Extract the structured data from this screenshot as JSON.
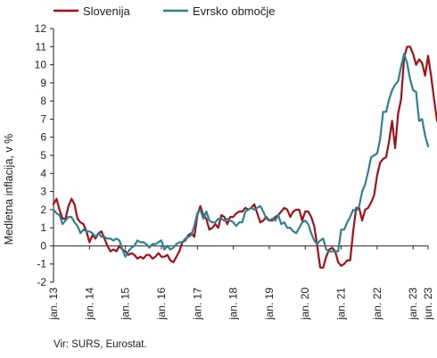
{
  "chart_data": {
    "type": "line",
    "ylabel": "Medletna inflacija, v %",
    "ylim": [
      -2,
      12
    ],
    "yticks": [
      -2,
      -1,
      0,
      1,
      2,
      3,
      4,
      5,
      6,
      7,
      8,
      9,
      10,
      11,
      12
    ],
    "xticks": [
      "jan. 13",
      "jan. 14",
      "jan. 15",
      "jan. 16",
      "jan. 17",
      "jan. 18",
      "jan. 19",
      "jan. 20",
      "jan. 21",
      "jan. 22",
      "jan. 23",
      "jun. 23"
    ],
    "x_start": "2013-01",
    "x_end": "2023-06",
    "legend": "top-left",
    "grid": false,
    "series": [
      {
        "name": "Slovenija",
        "color": "#a50f15",
        "values": [
          2.3,
          2.6,
          2.0,
          1.5,
          1.5,
          2.2,
          2.6,
          2.3,
          1.5,
          1.3,
          1.2,
          0.8,
          0.2,
          0.6,
          0.4,
          0.7,
          0.8,
          0.4,
          0.0,
          -0.3,
          -0.2,
          -0.3,
          0.0,
          -0.2,
          -0.3,
          -0.5,
          -0.4,
          -0.5,
          -0.7,
          -0.6,
          -0.7,
          -0.5,
          -0.5,
          -0.7,
          -0.6,
          -0.4,
          -0.6,
          -0.6,
          -0.5,
          -0.8,
          -0.9,
          -0.6,
          -0.3,
          0.2,
          0.3,
          0.6,
          0.7,
          0.5,
          1.7,
          2.2,
          1.7,
          1.5,
          0.9,
          1.0,
          1.2,
          1.0,
          1.7,
          1.6,
          1.2,
          1.6,
          1.6,
          1.8,
          1.9,
          1.9,
          2.1,
          2.0,
          2.1,
          2.3,
          1.8,
          1.3,
          1.4,
          1.6,
          1.4,
          1.4,
          1.6,
          1.7,
          1.9,
          2.1,
          2.0,
          1.6,
          1.9,
          2.0,
          2.0,
          1.4,
          1.9,
          1.9,
          1.6,
          1.1,
          0.0,
          -1.2,
          -1.2,
          -0.6,
          -0.2,
          -0.1,
          -0.3,
          -0.9,
          -1.1,
          -1.0,
          -0.8,
          -0.8,
          0.8,
          2.1,
          2.1,
          1.4,
          2.0,
          2.1,
          2.4,
          2.8,
          3.9,
          4.6,
          4.8,
          4.9,
          5.8,
          6.9,
          5.4,
          7.3,
          8.1,
          10.4,
          11.0,
          11.0,
          10.6,
          10.0,
          10.3,
          10.1,
          9.4,
          10.5,
          9.4,
          8.1,
          6.9
        ]
      },
      {
        "name": "Evrsko območje",
        "color": "#2a8391",
        "values": [
          2.0,
          1.8,
          1.7,
          1.2,
          1.4,
          1.6,
          1.6,
          1.3,
          1.1,
          0.7,
          0.9,
          0.8,
          0.8,
          0.7,
          0.5,
          0.7,
          0.5,
          0.5,
          0.4,
          0.4,
          0.3,
          0.4,
          0.3,
          -0.2,
          -0.6,
          -0.3,
          -0.1,
          0.0,
          0.3,
          0.2,
          0.2,
          0.1,
          -0.1,
          0.1,
          0.1,
          0.2,
          0.3,
          -0.2,
          0.0,
          -0.2,
          -0.1,
          0.1,
          0.2,
          0.2,
          0.4,
          0.5,
          0.6,
          1.1,
          1.8,
          2.0,
          1.5,
          1.9,
          1.4,
          1.3,
          1.3,
          1.5,
          1.5,
          1.4,
          1.5,
          1.4,
          1.3,
          1.1,
          1.3,
          1.3,
          1.9,
          2.0,
          2.1,
          2.0,
          2.1,
          2.2,
          1.9,
          1.5,
          1.4,
          1.5,
          1.4,
          1.7,
          1.2,
          1.3,
          1.0,
          1.0,
          0.8,
          0.7,
          1.0,
          1.3,
          1.4,
          1.2,
          0.7,
          0.3,
          0.1,
          0.3,
          0.4,
          -0.2,
          -0.3,
          -0.3,
          -0.3,
          -0.3,
          0.9,
          0.9,
          1.3,
          1.6,
          2.0,
          1.9,
          2.2,
          3.0,
          3.4,
          4.1,
          4.9,
          5.0,
          5.1,
          5.9,
          7.4,
          7.4,
          8.1,
          8.6,
          8.9,
          9.1,
          9.9,
          10.6,
          10.1,
          9.2,
          8.6,
          8.5,
          6.9,
          7.0,
          6.1,
          5.5
        ]
      }
    ]
  },
  "source": "Vir: SURS, Eurostat."
}
